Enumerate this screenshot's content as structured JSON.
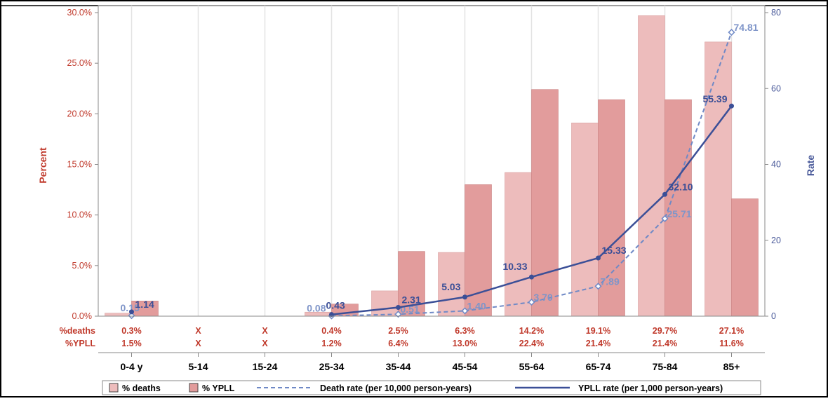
{
  "colors": {
    "deaths_bar": "#edbcbc",
    "ypll_bar": "#e29c9c",
    "death_rate_line": "#6f89c6",
    "ypll_rate_line": "#3b4f97",
    "left_axis": "#c0392b",
    "right_axis": "#4a5a9a",
    "grid": "#e3e3e3"
  },
  "chart_data": {
    "type": "bar",
    "categories": [
      "0-4 y",
      "5-14",
      "15-24",
      "25-34",
      "35-44",
      "45-54",
      "55-64",
      "65-74",
      "75-84",
      "85+"
    ],
    "ylabel": "Percent",
    "y2label": "Rate",
    "ylim": [
      0,
      30
    ],
    "y2lim": [
      0,
      80
    ],
    "yticks": [
      "0.0%",
      "5.0%",
      "10.0%",
      "15.0%",
      "20.0%",
      "25.0%",
      "30.0%"
    ],
    "y2ticks": [
      "0",
      "20",
      "40",
      "60",
      "80"
    ],
    "grid": "vertical",
    "legend_position": "bottom",
    "bar_series": [
      {
        "name": "% deaths",
        "values": [
          0.3,
          null,
          null,
          0.4,
          2.5,
          6.3,
          14.2,
          19.1,
          29.7,
          27.1
        ]
      },
      {
        "name": "% YPLL",
        "values": [
          1.5,
          null,
          null,
          1.2,
          6.4,
          13.0,
          22.4,
          21.4,
          21.4,
          11.6
        ]
      }
    ],
    "line_series": [
      {
        "name": "Death rate (per 10,000 person-years)",
        "style": "dashed",
        "values": [
          0.15,
          null,
          null,
          0.08,
          0.51,
          1.4,
          3.7,
          7.89,
          25.71,
          74.81
        ],
        "labels": [
          "0.15",
          "",
          "",
          "0.08",
          "0.51",
          "1.40",
          "3.70",
          "7.89",
          "25.71",
          "74.81"
        ]
      },
      {
        "name": "YPLL rate (per 1,000 person-years)",
        "style": "solid",
        "values": [
          1.14,
          null,
          null,
          0.43,
          2.31,
          5.03,
          10.33,
          15.33,
          32.1,
          55.39
        ],
        "labels": [
          "1.14",
          "",
          "",
          "0.43",
          "2.31",
          "5.03",
          "10.33",
          "15.33",
          "32.10",
          "55.39"
        ]
      }
    ],
    "table_rows": [
      {
        "label": "%deaths",
        "values": [
          "0.3%",
          "X",
          "X",
          "0.4%",
          "2.5%",
          "6.3%",
          "14.2%",
          "19.1%",
          "29.7%",
          "27.1%"
        ]
      },
      {
        "label": "%YPLL",
        "values": [
          "1.5%",
          "X",
          "X",
          "1.2%",
          "6.4%",
          "13.0%",
          "22.4%",
          "21.4%",
          "21.4%",
          "11.6%"
        ]
      }
    ]
  }
}
